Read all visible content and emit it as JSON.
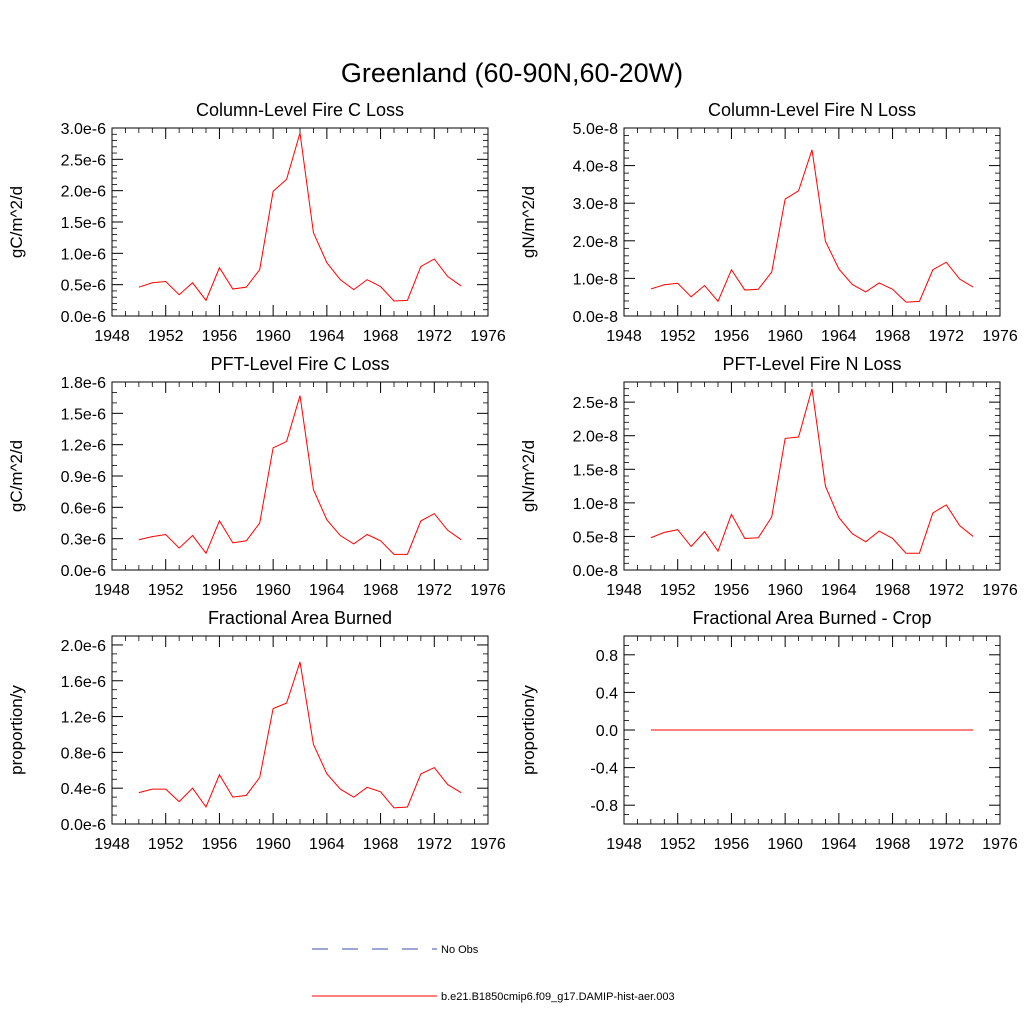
{
  "figure": {
    "title": "Greenland (60-90N,60-20W)",
    "line_color": "#ff0000",
    "obs_color": "#3d4db0"
  },
  "legend": {
    "entries": [
      {
        "label": "No Obs",
        "style": "dashed",
        "color": "#3d4db0"
      },
      {
        "label": "b.e21.B1850cmip6.f09_g17.DAMIP-hist-aer.003",
        "style": "solid",
        "color": "#ff0000"
      }
    ]
  },
  "chart_data": [
    {
      "type": "line",
      "title": "Column-Level Fire C Loss",
      "ylabel": "gC/m^2/d",
      "xlim": [
        1948,
        1976
      ],
      "xticks": [
        1948,
        1952,
        1956,
        1960,
        1964,
        1968,
        1972,
        1976
      ],
      "ylim": [
        0,
        3e-06
      ],
      "yticks": [
        0,
        5e-07,
        1e-06,
        1.5e-06,
        2e-06,
        2.5e-06,
        3e-06
      ],
      "ytick_labels": [
        "0.0e-6",
        "0.5e-6",
        "1.0e-6",
        "1.5e-6",
        "2.0e-6",
        "2.5e-6",
        "3.0e-6"
      ],
      "yminor": 5,
      "x": [
        1950,
        1951,
        1952,
        1953,
        1954,
        1955,
        1956,
        1957,
        1958,
        1959,
        1960,
        1961,
        1962,
        1963,
        1964,
        1965,
        1966,
        1967,
        1968,
        1969,
        1970,
        1971,
        1972,
        1973,
        1974
      ],
      "series": [
        {
          "values": [
            4.6e-07,
            5.3e-07,
            5.5e-07,
            3.4e-07,
            5.3e-07,
            2.5e-07,
            7.7e-07,
            4.3e-07,
            4.6e-07,
            7.4e-07,
            1.99e-06,
            2.18e-06,
            2.92e-06,
            1.33e-06,
            8.5e-07,
            5.8e-07,
            4.2e-07,
            5.8e-07,
            4.7e-07,
            2.4e-07,
            2.5e-07,
            7.9e-07,
            9.1e-07,
            6.3e-07,
            4.8e-07
          ]
        }
      ]
    },
    {
      "type": "line",
      "title": "Column-Level Fire N Loss",
      "ylabel": "gN/m^2/d",
      "xlim": [
        1948,
        1976
      ],
      "xticks": [
        1948,
        1952,
        1956,
        1960,
        1964,
        1968,
        1972,
        1976
      ],
      "ylim": [
        0,
        5e-08
      ],
      "yticks": [
        0,
        1e-08,
        2e-08,
        3e-08,
        4e-08,
        5e-08
      ],
      "ytick_labels": [
        "0.0e-8",
        "1.0e-8",
        "2.0e-8",
        "3.0e-8",
        "4.0e-8",
        "5.0e-8"
      ],
      "yminor": 5,
      "x": [
        1950,
        1951,
        1952,
        1953,
        1954,
        1955,
        1956,
        1957,
        1958,
        1959,
        1960,
        1961,
        1962,
        1963,
        1964,
        1965,
        1966,
        1967,
        1968,
        1969,
        1970,
        1971,
        1972,
        1973,
        1974
      ],
      "series": [
        {
          "values": [
            7.2e-09,
            8.3e-09,
            8.7e-09,
            5.1e-09,
            8.1e-09,
            3.9e-09,
            1.23e-08,
            6.9e-09,
            7.1e-09,
            1.17e-08,
            3.11e-08,
            3.33e-08,
            4.42e-08,
            1.99e-08,
            1.25e-08,
            8.4e-09,
            6.4e-09,
            8.8e-09,
            7.1e-09,
            3.7e-09,
            3.9e-09,
            1.23e-08,
            1.43e-08,
            9.8e-09,
            7.7e-09
          ]
        }
      ]
    },
    {
      "type": "line",
      "title": "PFT-Level Fire C Loss",
      "ylabel": "gC/m^2/d",
      "xlim": [
        1948,
        1976
      ],
      "xticks": [
        1948,
        1952,
        1956,
        1960,
        1964,
        1968,
        1972,
        1976
      ],
      "ylim": [
        0,
        1.8e-06
      ],
      "yticks": [
        0,
        3e-07,
        6e-07,
        9e-07,
        1.2e-06,
        1.5e-06,
        1.8e-06
      ],
      "ytick_labels": [
        "0.0e-6",
        "0.3e-6",
        "0.6e-6",
        "0.9e-6",
        "1.2e-6",
        "1.5e-6",
        "1.8e-6"
      ],
      "yminor": 3,
      "x": [
        1950,
        1951,
        1952,
        1953,
        1954,
        1955,
        1956,
        1957,
        1958,
        1959,
        1960,
        1961,
        1962,
        1963,
        1964,
        1965,
        1966,
        1967,
        1968,
        1969,
        1970,
        1971,
        1972,
        1973,
        1974
      ],
      "series": [
        {
          "values": [
            2.9e-07,
            3.2e-07,
            3.4e-07,
            2.1e-07,
            3.3e-07,
            1.6e-07,
            4.7e-07,
            2.6e-07,
            2.8e-07,
            4.5e-07,
            1.17e-06,
            1.23e-06,
            1.67e-06,
            7.7e-07,
            4.8e-07,
            3.3e-07,
            2.5e-07,
            3.4e-07,
            2.8e-07,
            1.5e-07,
            1.5e-07,
            4.7e-07,
            5.4e-07,
            3.8e-07,
            2.9e-07
          ]
        }
      ]
    },
    {
      "type": "line",
      "title": "PFT-Level Fire N Loss",
      "ylabel": "gN/m^2/d",
      "xlim": [
        1948,
        1976
      ],
      "xticks": [
        1948,
        1952,
        1956,
        1960,
        1964,
        1968,
        1972,
        1976
      ],
      "ylim": [
        0,
        2.8e-08
      ],
      "yticks": [
        0,
        5e-09,
        1e-08,
        1.5e-08,
        2e-08,
        2.5e-08
      ],
      "ytick_labels": [
        "0.0e-8",
        "0.5e-8",
        "1.0e-8",
        "1.5e-8",
        "2.0e-8",
        "2.5e-8"
      ],
      "yminor": 5,
      "x": [
        1950,
        1951,
        1952,
        1953,
        1954,
        1955,
        1956,
        1957,
        1958,
        1959,
        1960,
        1961,
        1962,
        1963,
        1964,
        1965,
        1966,
        1967,
        1968,
        1969,
        1970,
        1971,
        1972,
        1973,
        1974
      ],
      "series": [
        {
          "values": [
            4.8e-09,
            5.6e-09,
            6e-09,
            3.5e-09,
            5.7e-09,
            2.8e-09,
            8.3e-09,
            4.7e-09,
            4.8e-09,
            7.9e-09,
            1.96e-08,
            1.98e-08,
            2.7e-08,
            1.25e-08,
            7.8e-09,
            5.4e-09,
            4.2e-09,
            5.8e-09,
            4.7e-09,
            2.5e-09,
            2.5e-09,
            8.5e-09,
            9.7e-09,
            6.6e-09,
            5e-09
          ]
        }
      ]
    },
    {
      "type": "line",
      "title": "Fractional Area Burned",
      "ylabel": "proportion/y",
      "xlim": [
        1948,
        1976
      ],
      "xticks": [
        1948,
        1952,
        1956,
        1960,
        1964,
        1968,
        1972,
        1976
      ],
      "ylim": [
        0,
        2.1e-06
      ],
      "yticks": [
        0,
        4e-07,
        8e-07,
        1.2e-06,
        1.6e-06,
        2e-06
      ],
      "ytick_labels": [
        "0.0e-6",
        "0.4e-6",
        "0.8e-6",
        "1.2e-6",
        "1.6e-6",
        "2.0e-6"
      ],
      "yminor": 4,
      "x": [
        1950,
        1951,
        1952,
        1953,
        1954,
        1955,
        1956,
        1957,
        1958,
        1959,
        1960,
        1961,
        1962,
        1963,
        1964,
        1965,
        1966,
        1967,
        1968,
        1969,
        1970,
        1971,
        1972,
        1973,
        1974
      ],
      "series": [
        {
          "values": [
            3.5e-07,
            3.9e-07,
            3.9e-07,
            2.5e-07,
            4e-07,
            1.9e-07,
            5.5e-07,
            3e-07,
            3.2e-07,
            5.2e-07,
            1.29e-06,
            1.35e-06,
            1.81e-06,
            8.9e-07,
            5.6e-07,
            3.9e-07,
            3e-07,
            4.1e-07,
            3.6e-07,
            1.8e-07,
            1.9e-07,
            5.6e-07,
            6.3e-07,
            4.4e-07,
            3.5e-07
          ]
        }
      ]
    },
    {
      "type": "line",
      "title": "Fractional Area Burned - Crop",
      "ylabel": "proportion/y",
      "xlim": [
        1948,
        1976
      ],
      "xticks": [
        1948,
        1952,
        1956,
        1960,
        1964,
        1968,
        1972,
        1976
      ],
      "ylim": [
        -1.0,
        1.0
      ],
      "yticks": [
        -0.8,
        -0.4,
        0,
        0.4,
        0.8
      ],
      "ytick_labels": [
        "-0.8",
        "-0.4",
        "0.0",
        "0.4",
        "0.8"
      ],
      "yminor": 4,
      "x": [
        1950,
        1951,
        1952,
        1953,
        1954,
        1955,
        1956,
        1957,
        1958,
        1959,
        1960,
        1961,
        1962,
        1963,
        1964,
        1965,
        1966,
        1967,
        1968,
        1969,
        1970,
        1971,
        1972,
        1973,
        1974
      ],
      "series": [
        {
          "values": [
            0,
            0,
            0,
            0,
            0,
            0,
            0,
            0,
            0,
            0,
            0,
            0,
            0,
            0,
            0,
            0,
            0,
            0,
            0,
            0,
            0,
            0,
            0,
            0,
            0
          ]
        }
      ]
    }
  ]
}
